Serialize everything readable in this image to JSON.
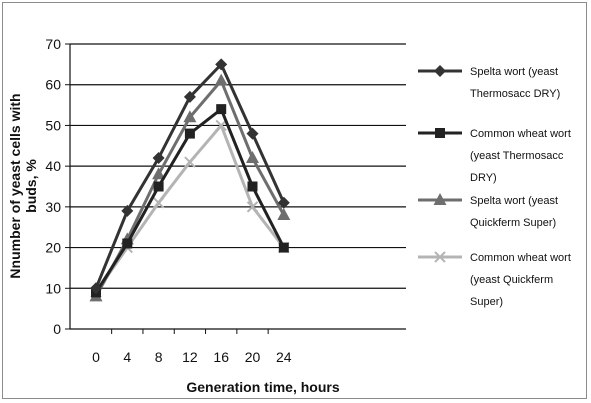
{
  "chart_data": {
    "type": "line",
    "title": "",
    "xlabel": "Generation time, hours",
    "ylabel_lines": [
      "Nnumber of yeast cells with",
      "buds, %"
    ],
    "x": [
      0,
      4,
      8,
      12,
      16,
      20,
      24
    ],
    "ylim": [
      0,
      70
    ],
    "yticks": [
      0,
      10,
      20,
      30,
      40,
      50,
      60,
      70
    ],
    "grid": true,
    "legend_position": "right",
    "series": [
      {
        "name_lines": [
          "Spelta wort (yeast",
          "Thermosacc DRY)"
        ],
        "marker": "diamond",
        "color": "#333333",
        "values": [
          10,
          29,
          42,
          57,
          65,
          48,
          31
        ]
      },
      {
        "name_lines": [
          "Common wheat wort",
          "(yeast Thermosacc",
          "DRY)"
        ],
        "marker": "square",
        "color": "#222222",
        "values": [
          9,
          21,
          35,
          48,
          54,
          35,
          20
        ]
      },
      {
        "name_lines": [
          "Spelta wort (yeast",
          "Quickferm Super)"
        ],
        "marker": "triangle",
        "color": "#6e6e6e",
        "values": [
          8,
          22,
          38,
          52,
          61,
          42,
          28
        ]
      },
      {
        "name_lines": [
          "Common wheat wort",
          "(yeast Quickferm",
          "Super)"
        ],
        "marker": "x",
        "color": "#b4b4b4",
        "values": [
          9,
          20,
          31,
          41,
          50,
          30,
          20
        ]
      }
    ]
  }
}
